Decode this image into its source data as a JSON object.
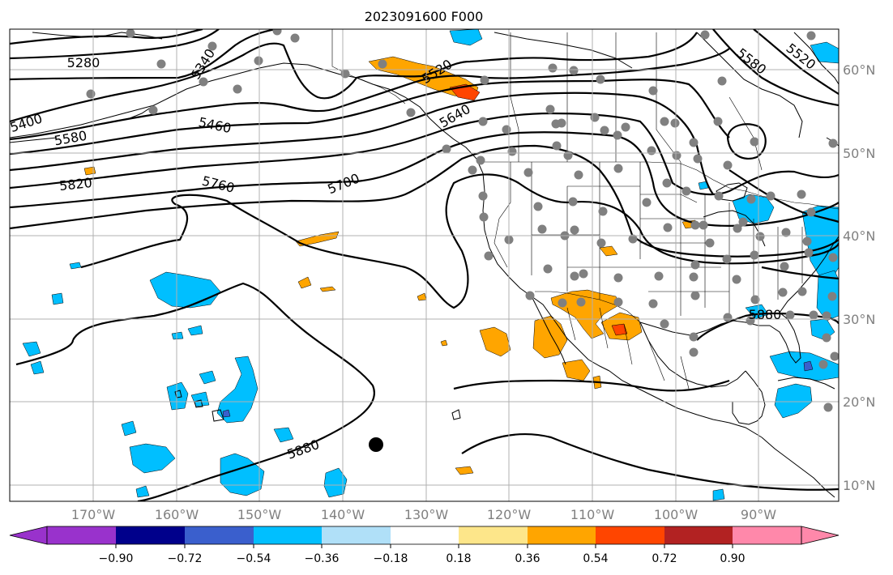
{
  "title": "2023091600 F000",
  "longitude_labels": [
    "170°W",
    "160°W",
    "150°W",
    "140°W",
    "130°W",
    "120°W",
    "110°W",
    "100°W",
    "90°W"
  ],
  "latitude_labels": [
    "60°N",
    "50°N",
    "40°N",
    "30°N",
    "20°N",
    "10°N"
  ],
  "contour_labels": [
    "5280",
    "5340",
    "5400",
    "5460",
    "5520",
    "5580",
    "5640",
    "5700",
    "5760",
    "5820",
    "5880",
    "5520",
    "5580",
    "5880"
  ],
  "colorbar": {
    "tick_labels": [
      "−0.90",
      "−0.72",
      "−0.54",
      "−0.36",
      "−0.18",
      "0.18",
      "0.36",
      "0.54",
      "0.72",
      "0.90"
    ],
    "colors": [
      "#9932cc",
      "#00008b",
      "#3a5fcd",
      "#00bfff",
      "#b0e0f8",
      "#ffffff",
      "#fde68a",
      "#ffa500",
      "#ff4500",
      "#b22222",
      "#ff88aa"
    ]
  },
  "colors": {
    "positive_fill": "#ffa500",
    "negative_fill": "#00bfff",
    "contour_line": "#000000",
    "station_dot": "#808080",
    "grid": "#b0b0b0"
  }
}
